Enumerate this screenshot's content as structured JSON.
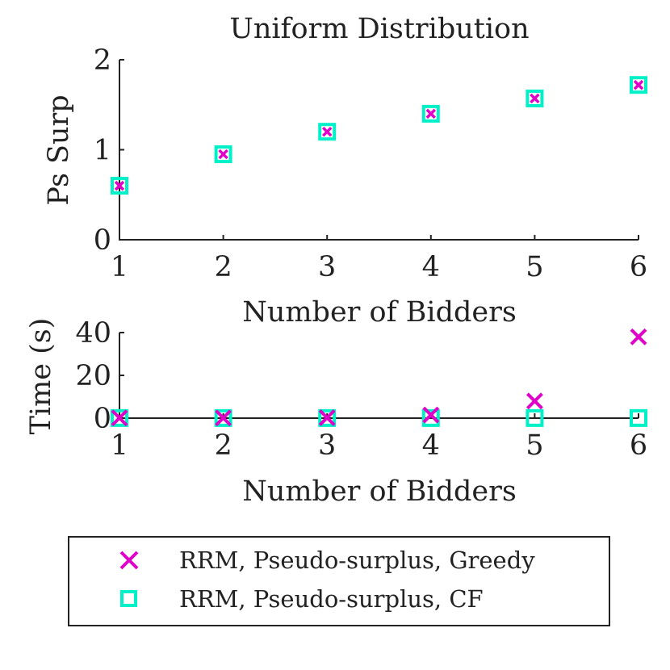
{
  "chart_data": [
    {
      "type": "scatter",
      "title": "Uniform Distribution",
      "xlabel": "Number of Bidders",
      "ylabel": "Ps Surp",
      "x": [
        1,
        2,
        3,
        4,
        5,
        6
      ],
      "xlim": [
        1,
        6
      ],
      "ylim": [
        0,
        2
      ],
      "xticks": [
        "1",
        "2",
        "3",
        "4",
        "5",
        "6"
      ],
      "yticks": [
        "0",
        "1",
        "2"
      ],
      "grid": false,
      "series": [
        {
          "name": "RRM, Pseudo-surplus, Greedy",
          "marker": "x",
          "color": "#e000c8",
          "values": [
            0.6,
            0.95,
            1.2,
            1.4,
            1.57,
            1.72
          ]
        },
        {
          "name": "RRM, Pseudo-surplus, CF",
          "marker": "square",
          "color": "#00f0c8",
          "values": [
            0.6,
            0.95,
            1.2,
            1.4,
            1.57,
            1.72
          ]
        }
      ]
    },
    {
      "type": "scatter",
      "title": "",
      "xlabel": "Number of Bidders",
      "ylabel": "Time (s)",
      "x": [
        1,
        2,
        3,
        4,
        5,
        6
      ],
      "xlim": [
        1,
        6
      ],
      "ylim": [
        0,
        40
      ],
      "xticks": [
        "1",
        "2",
        "3",
        "4",
        "5",
        "6"
      ],
      "yticks": [
        "0",
        "20",
        "40"
      ],
      "grid": false,
      "series": [
        {
          "name": "RRM, Pseudo-surplus, Greedy",
          "marker": "x",
          "color": "#e000c8",
          "values": [
            0.1,
            0.1,
            0.2,
            1.5,
            8,
            38
          ]
        },
        {
          "name": "RRM, Pseudo-surplus, CF",
          "marker": "square",
          "color": "#00f0c8",
          "values": [
            0.05,
            0.05,
            0.05,
            0.05,
            0.05,
            0.05
          ]
        }
      ]
    }
  ],
  "legend": {
    "placement": "bottom",
    "entries": [
      "RRM, Pseudo-surplus, Greedy",
      "RRM, Pseudo-surplus, CF"
    ]
  }
}
